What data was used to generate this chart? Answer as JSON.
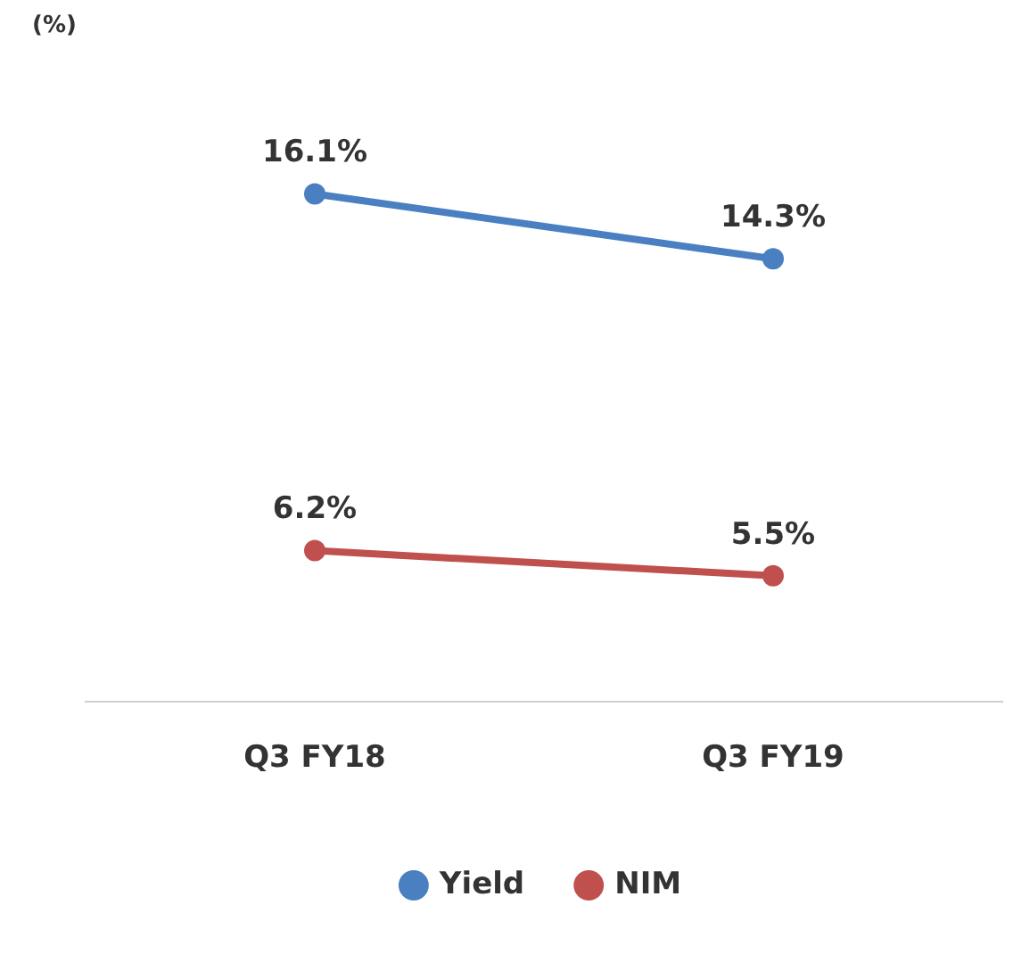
{
  "chart_data": {
    "type": "line",
    "annotations": [
      "(%)"
    ],
    "categories": [
      "Q3 FY18",
      "Q3 FY19"
    ],
    "series": [
      {
        "name": "Yield",
        "color": "#4a7fc1",
        "values": [
          16.1,
          14.3
        ],
        "value_labels": [
          "16.1%",
          "14.3%"
        ]
      },
      {
        "name": "NIM",
        "color": "#c0504d",
        "values": [
          6.2,
          5.5
        ],
        "value_labels": [
          "6.2%",
          "5.5%"
        ]
      }
    ],
    "tick_labels": "x",
    "legend": "bottom",
    "marker": "circle",
    "grid": false
  }
}
